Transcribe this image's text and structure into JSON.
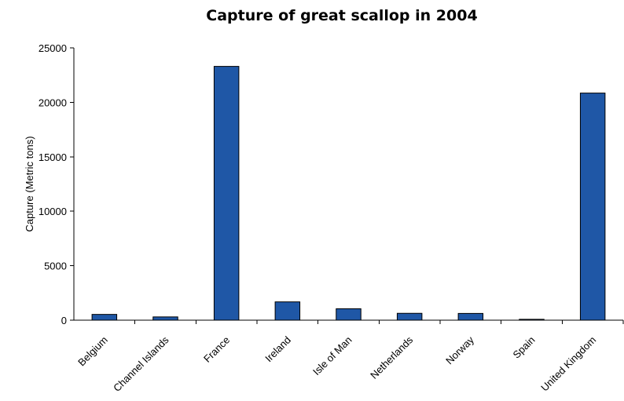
{
  "chart_data": {
    "type": "bar",
    "title": "Capture of great scallop in 2004",
    "xlabel": "",
    "ylabel": "Capture (Metric tons)",
    "categories": [
      "Belgium",
      "Channel Islands",
      "France",
      "Ireland",
      "Isle of Man",
      "Netherlands",
      "Norway",
      "Spain",
      "United Kingdom"
    ],
    "values": [
      530,
      300,
      23300,
      1680,
      1050,
      630,
      620,
      80,
      20850
    ],
    "ylim": [
      0,
      25000
    ],
    "yticks": [
      0,
      5000,
      10000,
      15000,
      20000,
      25000
    ],
    "grid": false,
    "legend": "none",
    "colors": {
      "bar_fill": "#1f57a6",
      "bar_stroke": "#000000",
      "axis": "#000000"
    }
  }
}
